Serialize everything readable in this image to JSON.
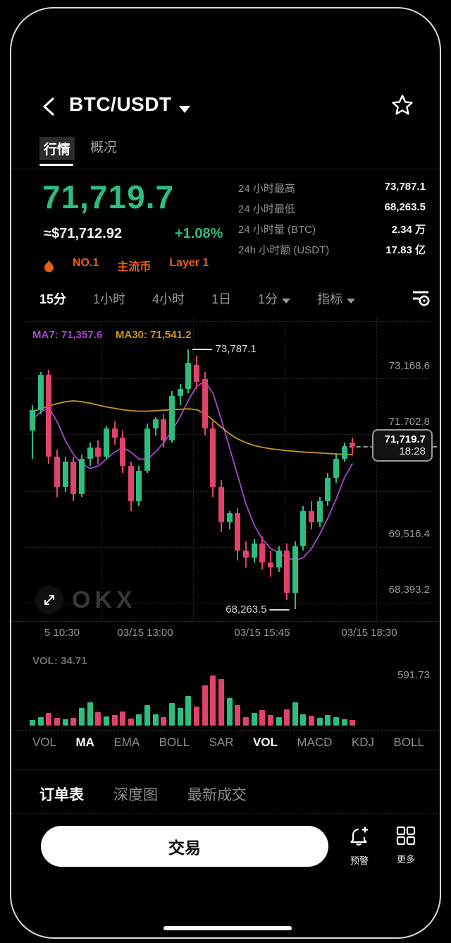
{
  "header": {
    "title": "BTC/USDT",
    "tabs": [
      {
        "label": "行情",
        "active": true
      },
      {
        "label": "概况",
        "active": false
      }
    ]
  },
  "price": {
    "last": "71,719.7",
    "usd_approx": "≈$71,712.92",
    "change_pct": "+1.08%"
  },
  "stats": [
    {
      "label": "24 小时最高",
      "value": "73,787.1"
    },
    {
      "label": "24 小时最低",
      "value": "68,263.5"
    },
    {
      "label": "24 小时量 (BTC)",
      "value": "2.34 万"
    },
    {
      "label": "24h 小时额 (USDT)",
      "value": "17.83 亿"
    }
  ],
  "badges": [
    "NO.1",
    "主流币",
    "Layer 1"
  ],
  "timeframes": {
    "items": [
      "15分",
      "1小时",
      "4小时",
      "1日"
    ],
    "active": "15分",
    "interval_dropdown": "1分",
    "indicator_dropdown": "指标"
  },
  "chart_data": {
    "type": "candlestick",
    "ma7_label": "MA7: 71,357.6",
    "ma30_label": "MA30: 71,541.2",
    "y_axis_labels": [
      "73,168.6",
      "71,702.8",
      "69,516.4",
      "68,393.2"
    ],
    "x_axis_labels": [
      "5 10:30",
      "03/15 13:00",
      "03/15 15:45",
      "03/15 18:30"
    ],
    "high_annotation": {
      "text": "73,787.1",
      "price": 73787.1,
      "candle_index": 19
    },
    "low_annotation": {
      "text": "68,263.5",
      "price": 68263.5,
      "candle_index": 32
    },
    "price_tag": {
      "price": "71,719.7",
      "time": "18:28"
    },
    "volume_current_label": "VOL: 34.71",
    "volume_axis_label": "591.73",
    "watermark": "OKX",
    "colors": {
      "up": "#2ebd7f",
      "down": "#e0436a",
      "ma7": "#a847d1",
      "ma30": "#c9941f"
    },
    "candles": [
      [
        72050,
        72600,
        71450,
        72500
      ],
      [
        72500,
        73300,
        72400,
        73250
      ],
      [
        73250,
        73350,
        71350,
        71500
      ],
      [
        71500,
        71650,
        70650,
        70850
      ],
      [
        70850,
        71500,
        70750,
        71400
      ],
      [
        71400,
        71500,
        70550,
        70700
      ],
      [
        70700,
        71550,
        70650,
        71450
      ],
      [
        71450,
        71800,
        71300,
        71700
      ],
      [
        71700,
        71850,
        71350,
        71500
      ],
      [
        71500,
        72150,
        71450,
        72100
      ],
      [
        72100,
        72250,
        71750,
        71900
      ],
      [
        71900,
        72050,
        71150,
        71300
      ],
      [
        71300,
        71400,
        70350,
        70550
      ],
      [
        70550,
        71300,
        70450,
        71200
      ],
      [
        71200,
        72200,
        71150,
        72100
      ],
      [
        72100,
        72350,
        71950,
        72300
      ],
      [
        72300,
        72400,
        71700,
        71850
      ],
      [
        71850,
        72900,
        71800,
        72800
      ],
      [
        72800,
        73050,
        72600,
        72950
      ],
      [
        72950,
        73787.1,
        72850,
        73500
      ],
      [
        73450,
        73650,
        72950,
        73100
      ],
      [
        73150,
        73300,
        71950,
        72100
      ],
      [
        72100,
        72250,
        70650,
        70850
      ],
      [
        70850,
        71000,
        69900,
        70100
      ],
      [
        70100,
        70350,
        69950,
        70300
      ],
      [
        70300,
        70400,
        69300,
        69500
      ],
      [
        69500,
        69700,
        69150,
        69350
      ],
      [
        69350,
        69750,
        69250,
        69650
      ],
      [
        69650,
        69800,
        69100,
        69250
      ],
      [
        69250,
        69500,
        68950,
        69150
      ],
      [
        69150,
        69600,
        69050,
        69500
      ],
      [
        69500,
        69650,
        68450,
        68600
      ],
      [
        68600,
        69700,
        68263.5,
        69600
      ],
      [
        69600,
        70450,
        69500,
        70350
      ],
      [
        70350,
        70550,
        69950,
        70100
      ],
      [
        70100,
        70650,
        70000,
        70550
      ],
      [
        70550,
        71150,
        70450,
        71050
      ],
      [
        71050,
        71550,
        70950,
        71450
      ],
      [
        71450,
        71800,
        71400,
        71700
      ],
      [
        71800,
        71900,
        71550,
        71719.7
      ]
    ],
    "volumes": [
      60,
      95,
      140,
      85,
      70,
      90,
      195,
      260,
      150,
      100,
      115,
      160,
      80,
      125,
      230,
      130,
      95,
      250,
      200,
      330,
      215,
      450,
      560,
      520,
      310,
      230,
      95,
      145,
      170,
      120,
      95,
      180,
      260,
      130,
      110,
      90,
      115,
      95,
      70,
      60
    ],
    "ma7": [
      72300,
      72450,
      72550,
      72250,
      71850,
      71550,
      71350,
      71250,
      71300,
      71450,
      71600,
      71700,
      71600,
      71450,
      71450,
      71600,
      71800,
      72050,
      72350,
      72700,
      73000,
      73100,
      72850,
      72300,
      71700,
      71100,
      70500,
      70050,
      69750,
      69550,
      69450,
      69350,
      69300,
      69350,
      69550,
      69850,
      70200,
      70600,
      71050,
      71357.6
    ],
    "ma30": [
      72450,
      72520,
      72580,
      72630,
      72670,
      72690,
      72670,
      72640,
      72600,
      72560,
      72530,
      72500,
      72480,
      72470,
      72470,
      72480,
      72490,
      72500,
      72510,
      72520,
      72500,
      72420,
      72280,
      72130,
      71990,
      71880,
      71800,
      71740,
      71700,
      71670,
      71650,
      71630,
      71615,
      71600,
      71590,
      71580,
      71570,
      71560,
      71550,
      71541.2
    ]
  },
  "indicators": {
    "items": [
      "VOL",
      "MA",
      "EMA",
      "BOLL",
      "SAR",
      "VOL",
      "MACD",
      "KDJ",
      "BOLL"
    ],
    "active_indices": [
      1,
      5
    ]
  },
  "bottom_tabs": {
    "items": [
      "订单表",
      "深度图",
      "最新成交"
    ],
    "active": "订单表"
  },
  "actions": {
    "trade_label": "交易",
    "alert_label": "预警",
    "more_label": "更多"
  }
}
